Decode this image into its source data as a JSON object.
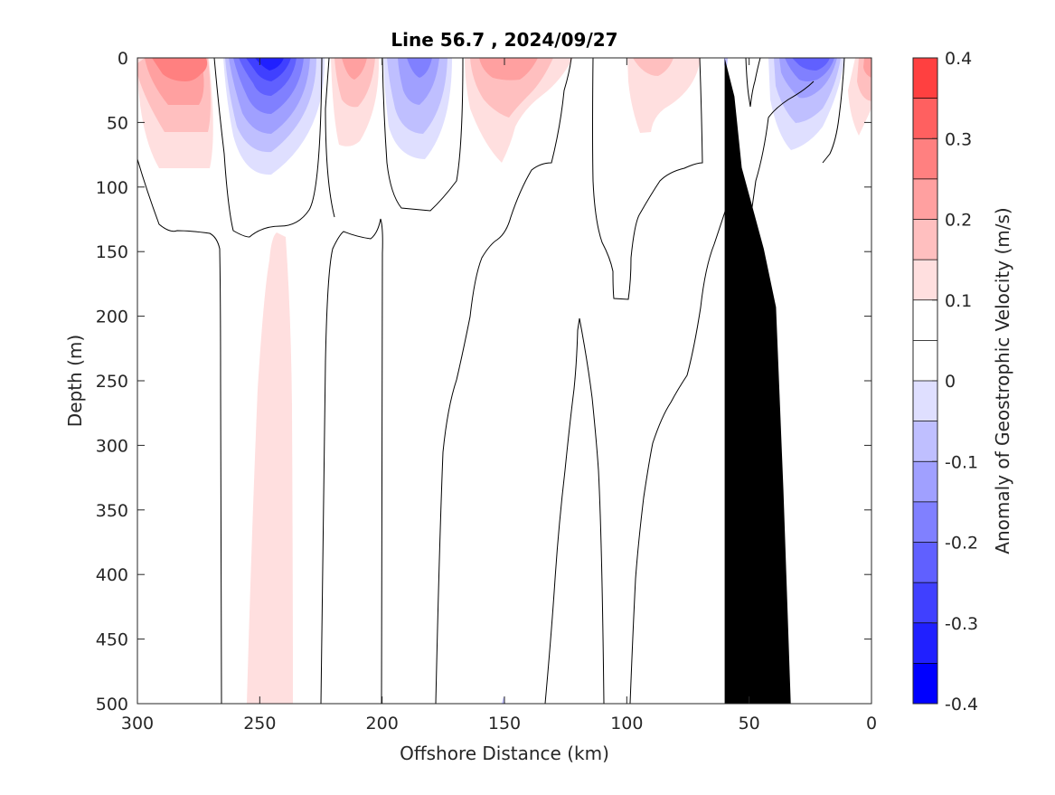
{
  "chart_data": {
    "type": "heatmap",
    "title": "Line 56.7 , 2024/09/27",
    "xlabel": "Offshore Distance (km)",
    "ylabel": "Depth (m)",
    "xlim": [
      300,
      0
    ],
    "ylim": [
      0,
      500
    ],
    "x_reversed": true,
    "y_reversed": true,
    "x_ticks": [
      "300",
      "250",
      "200",
      "150",
      "100",
      "50",
      "0"
    ],
    "y_ticks": [
      "0",
      "50",
      "100",
      "150",
      "200",
      "250",
      "300",
      "350",
      "400",
      "450",
      "500"
    ],
    "colorbar": {
      "label": "Anomaly of Geostrophic Velocity (m/s)",
      "range": [
        -0.4,
        0.4
      ],
      "tick_labels": [
        "-0.4",
        "-0.3",
        "-0.2",
        "-0.1",
        "0",
        "0.1",
        "0.2",
        "0.3",
        "0.4"
      ],
      "levels": [
        -0.4,
        -0.35,
        -0.3,
        -0.25,
        -0.2,
        -0.15,
        -0.1,
        -0.05,
        0,
        0.05,
        0.1,
        0.15,
        0.2,
        0.25,
        0.3,
        0.35,
        0.4
      ],
      "colors": [
        "#0000ff",
        "#2020ff",
        "#4040ff",
        "#6060ff",
        "#8080ff",
        "#a0a0ff",
        "#bfbfff",
        "#dfdfff",
        "#ffffff",
        "#ffffff",
        "#ffdfdf",
        "#ffbfbf",
        "#ffa0a0",
        "#ff8080",
        "#ff6060",
        "#ff4040",
        "#ff0000"
      ]
    },
    "features": [
      {
        "name": "positive core",
        "x_center": 280,
        "depth_max": 85,
        "peak": 0.25
      },
      {
        "name": "negative core",
        "x_center": 245,
        "depth_max": 90,
        "peak": -0.35
      },
      {
        "name": "positive core",
        "x_center": 213,
        "depth_max": 70,
        "peak": 0.15
      },
      {
        "name": "negative core",
        "x_center": 184,
        "depth_max": 80,
        "peak": -0.25
      },
      {
        "name": "positive core",
        "x_center": 150,
        "depth_max": 80,
        "peak": 0.15
      },
      {
        "name": "positive core",
        "x_center": 93,
        "depth_max": 58,
        "peak": 0.1
      },
      {
        "name": "negative core",
        "x_center": 23,
        "depth_max": 70,
        "peak": -0.3
      },
      {
        "name": "positive core",
        "x_center": 5,
        "depth_max": 60,
        "peak": 0.15
      },
      {
        "name": "deep positive",
        "x_center": 245,
        "depth_range": [
          255,
          500
        ],
        "peak": 0.1
      }
    ],
    "bathymetry": [
      [
        33,
        500
      ],
      [
        36,
        335
      ],
      [
        39,
        193
      ],
      [
        44,
        148
      ],
      [
        48,
        120
      ],
      [
        53,
        85
      ],
      [
        56,
        30
      ],
      [
        60,
        0
      ],
      [
        60,
        500
      ]
    ],
    "bathymetry_color": "#000000"
  }
}
